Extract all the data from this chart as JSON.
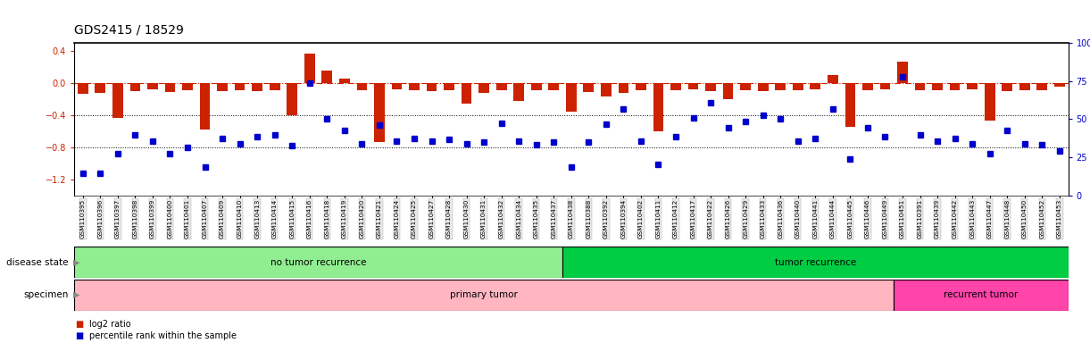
{
  "title": "GDS2415 / 18529",
  "sample_ids": [
    "GSM110395",
    "GSM110396",
    "GSM110397",
    "GSM110398",
    "GSM110399",
    "GSM110400",
    "GSM110401",
    "GSM110407",
    "GSM110409",
    "GSM110410",
    "GSM110413",
    "GSM110414",
    "GSM110415",
    "GSM110416",
    "GSM110418",
    "GSM110419",
    "GSM110420",
    "GSM110421",
    "GSM110424",
    "GSM110425",
    "GSM110427",
    "GSM110428",
    "GSM110430",
    "GSM110431",
    "GSM110432",
    "GSM110434",
    "GSM110435",
    "GSM110437",
    "GSM110438",
    "GSM110388",
    "GSM110392",
    "GSM110394",
    "GSM110402",
    "GSM110411",
    "GSM110412",
    "GSM110417",
    "GSM110422",
    "GSM110426",
    "GSM110429",
    "GSM110433",
    "GSM110436",
    "GSM110440",
    "GSM110441",
    "GSM110444",
    "GSM110445",
    "GSM110446",
    "GSM110449",
    "GSM110451",
    "GSM110391",
    "GSM110439",
    "GSM110442",
    "GSM110443",
    "GSM110447",
    "GSM110448",
    "GSM110450",
    "GSM110452",
    "GSM110453"
  ],
  "log2_ratio": [
    -0.13,
    -0.12,
    -0.43,
    -0.1,
    -0.08,
    -0.11,
    -0.09,
    -0.58,
    -0.1,
    -0.09,
    -0.1,
    -0.09,
    -0.4,
    0.37,
    0.15,
    0.05,
    -0.09,
    -0.73,
    -0.08,
    -0.09,
    -0.1,
    -0.09,
    -0.26,
    -0.12,
    -0.09,
    -0.22,
    -0.09,
    -0.09,
    -0.36,
    -0.11,
    -0.17,
    -0.12,
    -0.09,
    -0.6,
    -0.09,
    -0.08,
    -0.1,
    -0.2,
    -0.09,
    -0.1,
    -0.09,
    -0.09,
    -0.08,
    0.1,
    -0.55,
    -0.09,
    -0.08,
    0.27,
    -0.09,
    -0.09,
    -0.09,
    -0.08,
    -0.47,
    -0.1,
    -0.09,
    -0.09,
    -0.05
  ],
  "percentile": [
    5,
    5,
    20,
    35,
    30,
    20,
    25,
    10,
    32,
    28,
    33,
    35,
    26,
    75,
    47,
    38,
    28,
    42,
    30,
    32,
    30,
    31,
    28,
    29,
    44,
    30,
    27,
    29,
    10,
    29,
    43,
    55,
    30,
    12,
    33,
    48,
    60,
    40,
    45,
    50,
    47,
    30,
    32,
    55,
    16,
    40,
    33,
    80,
    35,
    30,
    32,
    28,
    20,
    38,
    28,
    27,
    22
  ],
  "disease_state_groups": [
    {
      "label": "no tumor recurrence",
      "start": 0,
      "end": 28,
      "color": "#90EE90"
    },
    {
      "label": "tumor recurrence",
      "start": 28,
      "end": 57,
      "color": "#00CC44"
    }
  ],
  "specimen_groups": [
    {
      "label": "primary tumor",
      "start": 0,
      "end": 47,
      "color": "#FFB6C1"
    },
    {
      "label": "recurrent tumor",
      "start": 47,
      "end": 57,
      "color": "#FF44AA"
    }
  ],
  "bar_color": "#CC2200",
  "dot_color": "#0000CC",
  "ylim_left": [
    -1.4,
    0.5
  ],
  "ylim_right": [
    0,
    100
  ],
  "yticks_left": [
    0.4,
    0.0,
    -0.4,
    -0.8,
    -1.2
  ],
  "yticks_right": [
    100,
    75,
    50,
    25,
    0
  ],
  "background_color": "#ffffff",
  "title_fontsize": 10,
  "tick_fontsize": 7
}
